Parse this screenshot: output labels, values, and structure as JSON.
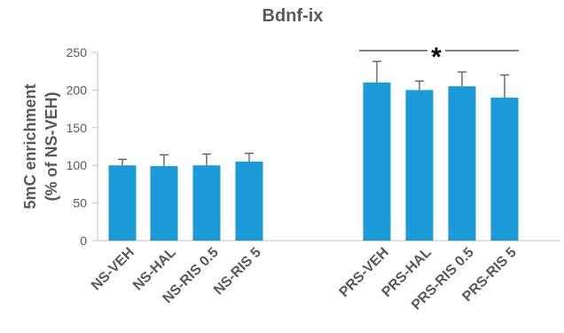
{
  "chart_data": {
    "type": "bar",
    "title": "Bdnf-ix",
    "ylabel_line1": "5mC enrichment",
    "ylabel_line2": "(% of NS-VEH)",
    "xlabel": "",
    "ylim": [
      0,
      250
    ],
    "yticks": [
      0,
      50,
      100,
      150,
      200,
      250
    ],
    "grid": false,
    "categories": [
      "NS-VEH",
      "NS-HAL",
      "NS-RIS 0.5",
      "NS-RIS 5",
      "PRS-VEH",
      "PRS-HAL",
      "PRS-RIS 0.5",
      "PRS-RIS 5"
    ],
    "values": [
      100,
      99,
      100,
      105,
      210,
      200,
      205,
      190
    ],
    "errors": [
      8,
      15,
      15,
      11,
      28,
      12,
      19,
      30
    ],
    "bar_color": "#1a9bd7",
    "error_bar_color": "#595959",
    "significance": {
      "label": "*",
      "spans": "PRS-VEH to PRS-RIS 5"
    }
  }
}
